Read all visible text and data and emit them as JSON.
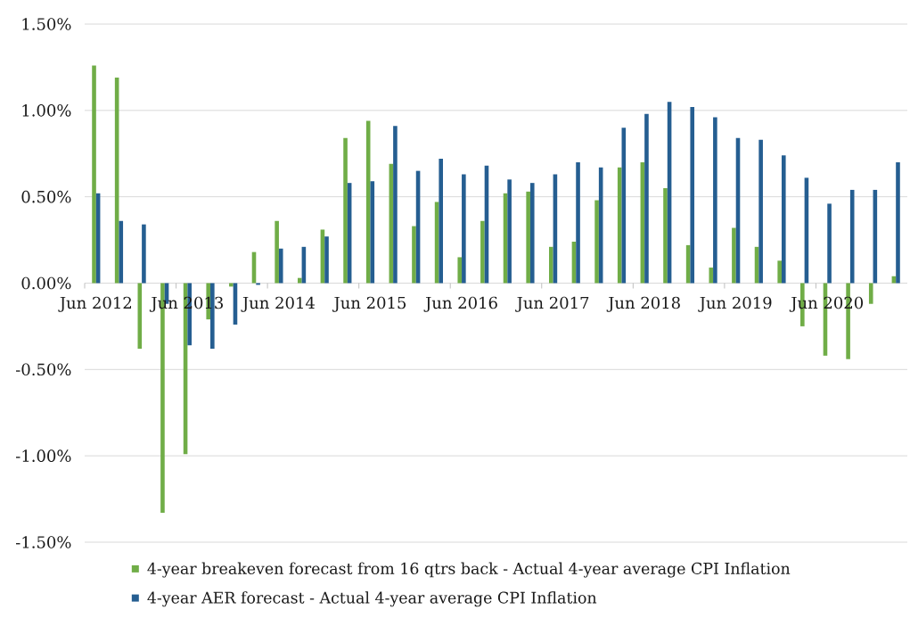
{
  "chart_data": {
    "type": "bar",
    "categories": [
      "Jun 2012",
      null,
      null,
      null,
      "Jun 2013",
      null,
      null,
      null,
      "Jun 2014",
      null,
      null,
      null,
      "Jun 2015",
      null,
      null,
      null,
      "Jun 2016",
      null,
      null,
      null,
      "Jun 2017",
      null,
      null,
      null,
      "Jun 2018",
      null,
      null,
      null,
      "Jun 2019",
      null,
      null,
      null,
      "Jun 2020",
      null,
      null,
      null
    ],
    "series": [
      {
        "name": "4-year breakeven forecast from 16 qtrs back - Actual 4-year average CPI Inflation",
        "color": "#70ad47",
        "values": [
          1.26,
          1.19,
          -0.38,
          -1.33,
          -0.99,
          -0.21,
          -0.02,
          0.18,
          0.36,
          0.03,
          0.31,
          0.84,
          0.94,
          0.69,
          0.33,
          0.47,
          0.15,
          0.36,
          0.52,
          0.53,
          0.21,
          0.24,
          0.48,
          0.67,
          0.7,
          0.55,
          0.22,
          0.09,
          0.32,
          0.21,
          0.13,
          -0.25,
          -0.42,
          -0.44,
          -0.12,
          0.04
        ]
      },
      {
        "name": "4-year AER forecast - Actual 4-year average CPI Inflation",
        "color": "#255e91",
        "values": [
          0.52,
          0.36,
          0.34,
          -0.12,
          -0.36,
          -0.38,
          -0.24,
          -0.01,
          0.2,
          0.21,
          0.27,
          0.58,
          0.59,
          0.91,
          0.65,
          0.72,
          0.63,
          0.68,
          0.6,
          0.58,
          0.63,
          0.7,
          0.67,
          0.9,
          0.98,
          1.05,
          1.02,
          0.96,
          0.84,
          0.83,
          0.74,
          0.61,
          0.46,
          0.54,
          0.54,
          0.7
        ]
      }
    ],
    "ylim": [
      -1.5,
      1.5
    ],
    "yticks": [
      {
        "value": -1.5,
        "label": "-1.50%"
      },
      {
        "value": -1.0,
        "label": "-1.00%"
      },
      {
        "value": -0.5,
        "label": "-0.50%"
      },
      {
        "value": 0,
        "label": "0.00%"
      },
      {
        "value": 0.5,
        "label": "0.50%"
      },
      {
        "value": 1.0,
        "label": "1.00%"
      },
      {
        "value": 1.5,
        "label": "1.50%"
      }
    ],
    "grid": "y",
    "legend": "bottom"
  }
}
